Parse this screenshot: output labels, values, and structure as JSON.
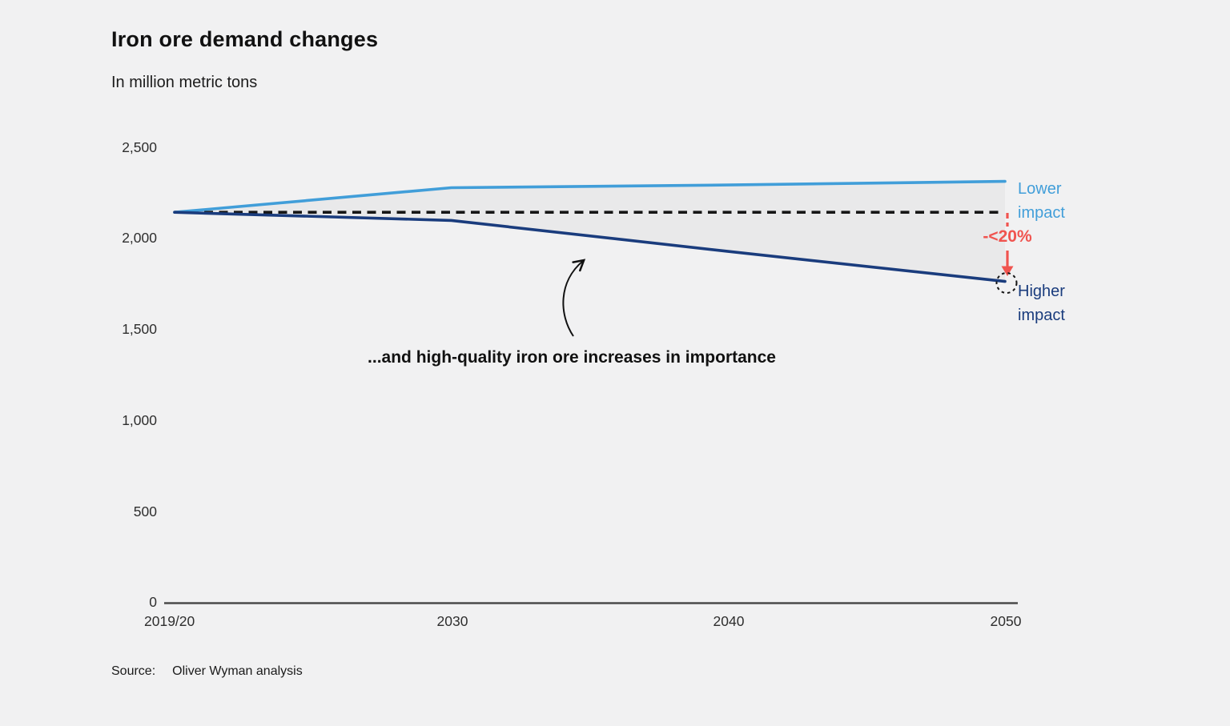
{
  "title": "Iron ore demand changes",
  "subtitle": "In million metric tons",
  "source": {
    "label": "Source:",
    "text": "Oliver Wyman analysis"
  },
  "annotations": {
    "delta": {
      "text": "-<20%",
      "color": "#F0544F"
    },
    "callout": {
      "text": "...and high-quality iron ore increases in importance"
    }
  },
  "chart_data": {
    "type": "line",
    "title": "Iron ore demand changes",
    "ylabel": "In million metric tons",
    "categories": [
      "2019/20",
      "2030",
      "2040",
      "2050"
    ],
    "series": [
      {
        "name": "Lower impact",
        "color": "#419ED9",
        "values": [
          2140,
          2275,
          2290,
          2310
        ]
      },
      {
        "name": "Higher impact",
        "color": "#1A3C7D",
        "values": [
          2140,
          2095,
          1925,
          1760
        ]
      }
    ],
    "baseline": {
      "value": 2140,
      "style": "dashed",
      "color": "#161616"
    },
    "band_between_series": true,
    "band_color": "#E9E9EA",
    "ylim": [
      0,
      2500
    ],
    "ytick_values": [
      2500,
      2000,
      1500,
      1000,
      500,
      0
    ],
    "ytick_labels": [
      "2,500",
      "2,000",
      "1,500",
      "1,000",
      "500",
      "0"
    ],
    "grid": false,
    "legend_position": "right-end-labels"
  },
  "colors": {
    "background": "#F1F1F2",
    "axis": "#4A4A4A",
    "accent_red": "#F0544F"
  }
}
